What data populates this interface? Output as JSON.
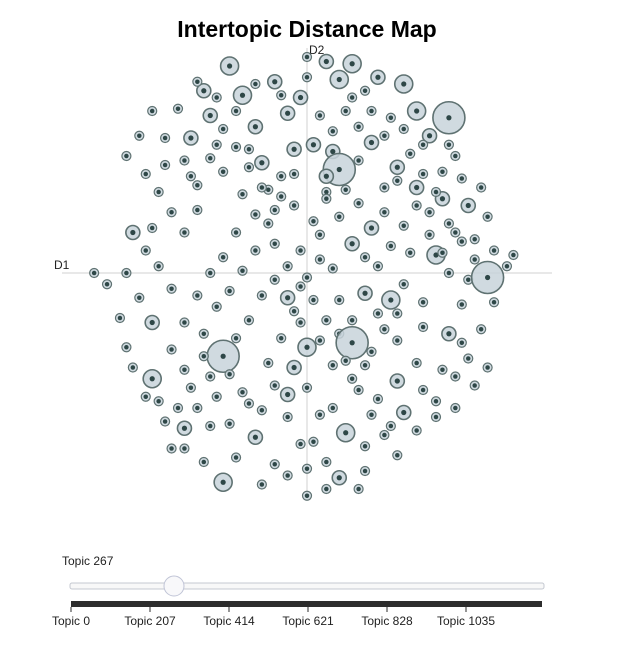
{
  "chart_data": {
    "type": "scatter",
    "title": "Intertopic Distance Map",
    "xlabel": "D1",
    "ylabel": "D2",
    "xlim": [
      -1.0,
      1.0
    ],
    "ylim": [
      -1.0,
      1.0
    ],
    "grid": false,
    "legend": "none",
    "colors": {
      "fill": "#c8d3da",
      "stroke": "#5f7272",
      "core": "#2e4747",
      "axis": "#d0d0d0"
    },
    "points": [
      [
        -0.72,
        0.72,
        0
      ],
      [
        -0.66,
        0.6,
        0
      ],
      [
        -0.66,
        0.48,
        0
      ],
      [
        -0.72,
        0.2,
        0
      ],
      [
        -0.54,
        0.6,
        1
      ],
      [
        -0.57,
        0.5,
        0
      ],
      [
        -0.54,
        0.43,
        0
      ],
      [
        -0.51,
        0.39,
        0
      ],
      [
        -0.48,
        0.81,
        1
      ],
      [
        -0.45,
        0.7,
        1
      ],
      [
        -0.42,
        0.57,
        0
      ],
      [
        -0.39,
        0.45,
        0
      ],
      [
        -0.36,
        0.92,
        2
      ],
      [
        -0.3,
        0.79,
        2
      ],
      [
        -0.24,
        0.65,
        1
      ],
      [
        -0.27,
        0.55,
        0
      ],
      [
        -0.21,
        0.49,
        1
      ],
      [
        -0.18,
        0.37,
        0
      ],
      [
        -0.15,
        0.85,
        1
      ],
      [
        -0.09,
        0.71,
        1
      ],
      [
        -0.03,
        0.78,
        1
      ],
      [
        -0.06,
        0.55,
        1
      ],
      [
        -0.12,
        0.43,
        0
      ],
      [
        -0.3,
        0.35,
        0
      ],
      [
        0.09,
        0.94,
        1
      ],
      [
        0.15,
        0.86,
        2
      ],
      [
        0.21,
        0.93,
        2
      ],
      [
        0.27,
        0.81,
        0
      ],
      [
        0.33,
        0.87,
        1
      ],
      [
        0.39,
        0.69,
        0
      ],
      [
        0.45,
        0.84,
        2
      ],
      [
        0.51,
        0.72,
        2
      ],
      [
        0.57,
        0.61,
        1
      ],
      [
        0.66,
        0.69,
        4
      ],
      [
        0.69,
        0.52,
        0
      ],
      [
        0.63,
        0.45,
        0
      ],
      [
        0.42,
        0.47,
        1
      ],
      [
        0.36,
        0.38,
        0
      ],
      [
        0.3,
        0.58,
        1
      ],
      [
        0.24,
        0.65,
        0
      ],
      [
        0.18,
        0.72,
        0
      ],
      [
        0.12,
        0.54,
        1
      ],
      [
        0.24,
        0.5,
        0
      ],
      [
        0.15,
        0.46,
        4
      ],
      [
        0.09,
        0.36,
        0
      ],
      [
        0.51,
        0.38,
        1
      ],
      [
        0.57,
        0.27,
        0
      ],
      [
        0.63,
        0.33,
        1
      ],
      [
        0.75,
        0.3,
        1
      ],
      [
        0.78,
        0.15,
        0
      ],
      [
        0.69,
        0.18,
        0
      ],
      [
        0.6,
        0.08,
        2
      ],
      [
        0.66,
        0.0,
        0
      ],
      [
        0.75,
        -0.03,
        0
      ],
      [
        0.84,
        -0.02,
        4
      ],
      [
        0.72,
        -0.14,
        0
      ],
      [
        0.54,
        -0.13,
        0
      ],
      [
        0.45,
        -0.05,
        0
      ],
      [
        0.39,
        -0.12,
        2
      ],
      [
        0.33,
        -0.18,
        0
      ],
      [
        0.27,
        -0.09,
        1
      ],
      [
        0.21,
        -0.21,
        0
      ],
      [
        0.15,
        -0.27,
        0
      ],
      [
        0.21,
        -0.31,
        4
      ],
      [
        0.3,
        -0.35,
        0
      ],
      [
        0.42,
        -0.3,
        0
      ],
      [
        0.54,
        -0.24,
        0
      ],
      [
        0.66,
        -0.27,
        1
      ],
      [
        0.75,
        -0.38,
        0
      ],
      [
        0.69,
        -0.46,
        0
      ],
      [
        0.6,
        -0.57,
        0
      ],
      [
        0.51,
        -0.4,
        0
      ],
      [
        0.42,
        -0.48,
        1
      ],
      [
        0.33,
        -0.56,
        0
      ],
      [
        0.39,
        -0.68,
        0
      ],
      [
        0.27,
        -0.77,
        0
      ],
      [
        0.18,
        -0.71,
        2
      ],
      [
        0.12,
        -0.6,
        0
      ],
      [
        0.09,
        -0.84,
        0
      ],
      [
        0.15,
        -0.91,
        1
      ],
      [
        0.03,
        -0.75,
        0
      ],
      [
        0.0,
        -0.33,
        2
      ],
      [
        -0.03,
        -0.22,
        0
      ],
      [
        -0.09,
        -0.11,
        1
      ],
      [
        -0.15,
        -0.03,
        0
      ],
      [
        -0.21,
        -0.1,
        0
      ],
      [
        -0.27,
        -0.21,
        0
      ],
      [
        -0.33,
        -0.29,
        0
      ],
      [
        -0.39,
        -0.37,
        4
      ],
      [
        -0.45,
        -0.46,
        0
      ],
      [
        -0.51,
        -0.6,
        0
      ],
      [
        -0.57,
        -0.69,
        1
      ],
      [
        -0.63,
        -0.78,
        0
      ],
      [
        -0.69,
        -0.57,
        0
      ],
      [
        -0.63,
        -0.34,
        0
      ],
      [
        -0.57,
        -0.22,
        0
      ],
      [
        -0.51,
        -0.1,
        0
      ],
      [
        -0.45,
        0.0,
        0
      ],
      [
        -0.39,
        0.07,
        0
      ],
      [
        -0.33,
        0.18,
        0
      ],
      [
        -0.24,
        0.26,
        0
      ],
      [
        -0.15,
        0.13,
        0
      ],
      [
        -0.06,
        0.3,
        0
      ],
      [
        -0.06,
        -0.42,
        1
      ],
      [
        -0.15,
        -0.5,
        0
      ],
      [
        -0.21,
        -0.61,
        0
      ],
      [
        -0.24,
        -0.73,
        1
      ],
      [
        -0.33,
        -0.82,
        0
      ],
      [
        -0.39,
        -0.93,
        2
      ],
      [
        -0.45,
        -0.68,
        0
      ],
      [
        -0.15,
        -0.85,
        0
      ],
      [
        -0.09,
        -0.64,
        0
      ],
      [
        -0.03,
        -0.76,
        0
      ],
      [
        -0.09,
        -0.54,
        1
      ],
      [
        -0.63,
        -0.07,
        0
      ],
      [
        -0.69,
        0.03,
        0
      ],
      [
        -0.75,
        0.1,
        0
      ],
      [
        -0.81,
        0.18,
        1
      ],
      [
        -0.84,
        0.0,
        0
      ],
      [
        -0.78,
        -0.11,
        0
      ],
      [
        -0.72,
        -0.22,
        1
      ],
      [
        -0.84,
        -0.33,
        0
      ],
      [
        -0.72,
        -0.47,
        2
      ],
      [
        -0.57,
        -0.43,
        0
      ],
      [
        -0.48,
        -0.27,
        0
      ],
      [
        -0.42,
        -0.15,
        0
      ],
      [
        -0.36,
        -0.08,
        0
      ],
      [
        -0.3,
        0.01,
        0
      ],
      [
        -0.24,
        0.1,
        0
      ],
      [
        -0.18,
        0.22,
        0
      ],
      [
        -0.12,
        0.34,
        0
      ],
      [
        -0.06,
        0.44,
        0
      ],
      [
        0.03,
        0.57,
        1
      ],
      [
        0.09,
        0.43,
        1
      ],
      [
        0.15,
        0.25,
        0
      ],
      [
        0.21,
        0.13,
        1
      ],
      [
        0.27,
        0.07,
        0
      ],
      [
        0.33,
        0.03,
        0
      ],
      [
        0.39,
        0.12,
        0
      ],
      [
        0.45,
        0.21,
        0
      ],
      [
        0.51,
        0.3,
        0
      ],
      [
        0.57,
        0.17,
        0
      ],
      [
        0.63,
        0.09,
        0
      ],
      [
        0.48,
        0.09,
        0
      ],
      [
        0.42,
        -0.18,
        0
      ],
      [
        0.36,
        -0.25,
        0
      ],
      [
        0.27,
        -0.41,
        0
      ],
      [
        0.21,
        -0.47,
        0
      ],
      [
        0.12,
        -0.41,
        0
      ],
      [
        0.06,
        -0.3,
        0
      ],
      [
        0.0,
        -0.02,
        0
      ],
      [
        0.06,
        0.06,
        0
      ],
      [
        0.12,
        0.02,
        0
      ],
      [
        0.06,
        0.17,
        0
      ],
      [
        -0.03,
        0.1,
        0
      ],
      [
        0.03,
        0.23,
        0
      ],
      [
        0.09,
        0.33,
        0
      ],
      [
        0.18,
        0.37,
        0
      ],
      [
        0.24,
        0.31,
        0
      ],
      [
        0.3,
        0.2,
        1
      ],
      [
        0.36,
        0.27,
        0
      ],
      [
        0.42,
        0.41,
        0
      ],
      [
        0.48,
        0.53,
        0
      ],
      [
        0.54,
        0.57,
        0
      ],
      [
        0.6,
        0.36,
        0
      ],
      [
        0.66,
        0.22,
        0
      ],
      [
        0.72,
        0.14,
        0
      ],
      [
        0.78,
        0.06,
        0
      ],
      [
        0.84,
        0.25,
        0
      ],
      [
        0.87,
        -0.13,
        0
      ],
      [
        0.81,
        -0.25,
        0
      ],
      [
        0.72,
        -0.31,
        0
      ],
      [
        0.63,
        -0.43,
        0
      ],
      [
        0.54,
        -0.52,
        0
      ],
      [
        0.45,
        -0.62,
        1
      ],
      [
        0.36,
        -0.72,
        0
      ],
      [
        0.3,
        -0.63,
        0
      ],
      [
        0.24,
        -0.52,
        0
      ],
      [
        0.18,
        -0.39,
        0
      ],
      [
        0.15,
        -0.12,
        0
      ],
      [
        0.09,
        -0.21,
        0
      ],
      [
        0.03,
        -0.12,
        0
      ],
      [
        -0.03,
        -0.06,
        0
      ],
      [
        -0.09,
        0.03,
        0
      ],
      [
        -0.15,
        0.28,
        0
      ],
      [
        -0.21,
        0.38,
        0
      ],
      [
        -0.27,
        0.47,
        0
      ],
      [
        -0.33,
        0.56,
        0
      ],
      [
        -0.39,
        0.64,
        0
      ],
      [
        -0.45,
        0.51,
        0
      ],
      [
        -0.51,
        0.28,
        0
      ],
      [
        -0.57,
        0.18,
        0
      ],
      [
        -0.63,
        0.27,
        0
      ],
      [
        -0.69,
        0.36,
        0
      ],
      [
        -0.75,
        0.44,
        0
      ],
      [
        -0.84,
        0.52,
        0
      ],
      [
        -0.78,
        0.61,
        0
      ],
      [
        -0.6,
        0.73,
        0
      ],
      [
        -0.51,
        0.85,
        0
      ],
      [
        -0.42,
        0.78,
        0
      ],
      [
        -0.33,
        0.72,
        0
      ],
      [
        -0.24,
        0.84,
        0
      ],
      [
        -0.12,
        0.79,
        0
      ],
      [
        0.0,
        0.87,
        0
      ],
      [
        0.06,
        0.7,
        0
      ],
      [
        0.12,
        0.63,
        0
      ],
      [
        0.21,
        0.78,
        0
      ],
      [
        0.3,
        0.72,
        0
      ],
      [
        0.36,
        0.61,
        0
      ],
      [
        0.45,
        0.64,
        0
      ],
      [
        0.54,
        0.44,
        0
      ],
      [
        0.66,
        0.57,
        0
      ],
      [
        0.72,
        0.42,
        0
      ],
      [
        0.81,
        0.38,
        0
      ],
      [
        0.87,
        0.1,
        0
      ],
      [
        -0.87,
        -0.2,
        0
      ],
      [
        -0.81,
        -0.42,
        0
      ],
      [
        -0.75,
        -0.55,
        0
      ],
      [
        -0.66,
        -0.66,
        0
      ],
      [
        -0.57,
        -0.78,
        0
      ],
      [
        -0.48,
        -0.84,
        0
      ],
      [
        -0.36,
        -0.67,
        0
      ],
      [
        -0.27,
        -0.58,
        0
      ],
      [
        -0.18,
        -0.4,
        0
      ],
      [
        -0.12,
        -0.29,
        0
      ],
      [
        -0.06,
        -0.17,
        0
      ],
      [
        0.0,
        -0.51,
        0
      ],
      [
        0.06,
        -0.63,
        0
      ],
      [
        0.0,
        -0.87,
        0
      ],
      [
        0.09,
        -0.96,
        0
      ],
      [
        -0.09,
        -0.9,
        0
      ],
      [
        -0.21,
        -0.94,
        0
      ],
      [
        -0.3,
        -0.53,
        0
      ],
      [
        -0.36,
        -0.45,
        0
      ],
      [
        -0.42,
        -0.55,
        0
      ],
      [
        -0.48,
        -0.37,
        0
      ],
      [
        -0.54,
        -0.51,
        0
      ],
      [
        -0.6,
        -0.6,
        0
      ],
      [
        0.27,
        -0.88,
        0
      ],
      [
        0.42,
        -0.81,
        0
      ],
      [
        0.51,
        -0.7,
        0
      ],
      [
        0.6,
        -0.64,
        0
      ],
      [
        0.69,
        -0.6,
        0
      ],
      [
        0.78,
        -0.5,
        0
      ],
      [
        0.84,
        -0.42,
        0
      ],
      [
        0.24,
        -0.96,
        0
      ],
      [
        -0.99,
        0.0,
        0
      ],
      [
        0.93,
        0.03,
        0
      ],
      [
        -0.93,
        -0.05,
        0
      ],
      [
        0.0,
        0.96,
        0
      ],
      [
        0.96,
        0.08,
        0
      ],
      [
        0.0,
        -0.99,
        0
      ]
    ]
  },
  "slider": {
    "current_label": "Topic 267",
    "ticks": [
      "Topic 0",
      "Topic 207",
      "Topic 414",
      "Topic 621",
      "Topic 828",
      "Topic 1035"
    ]
  }
}
